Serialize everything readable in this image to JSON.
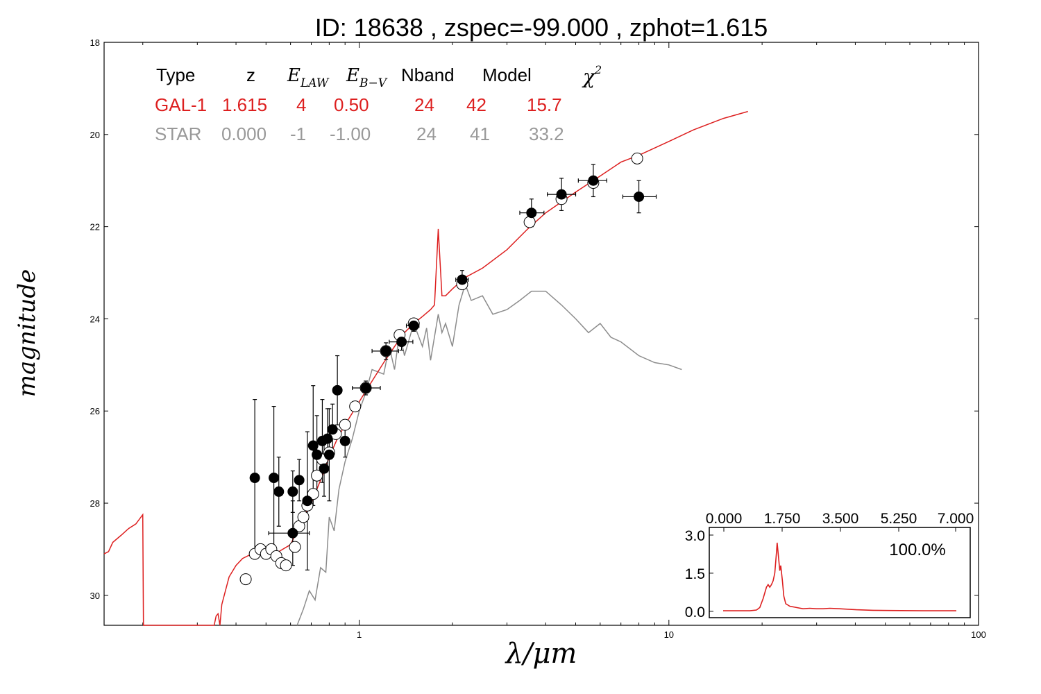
{
  "title": "ID:  18638 , zspec=-99.000 , zphot=1.615",
  "xlabel": "λ/μm",
  "ylabel": "magnitude",
  "colors": {
    "galaxy": "#dd1f1f",
    "star": "#8c8c8c",
    "axis": "#000000"
  },
  "legend": {
    "header": {
      "type": "Type",
      "z": "z",
      "elaw": "E",
      "elaw_sub": "LAW",
      "ebv": "E",
      "ebv_sub": "B−V",
      "nband": "Nband",
      "model": "Model",
      "chi2": "χ",
      "chi2_sup": "2"
    },
    "rows": [
      {
        "type": "GAL-1",
        "z": "1.615",
        "elaw": "4",
        "ebv": "0.50",
        "nband": "24",
        "model": "42",
        "chi2": "15.7",
        "color": "#dd1f1f"
      },
      {
        "type": "STAR",
        "z": "0.000",
        "elaw": "-1",
        "ebv": "-1.00",
        "nband": "24",
        "model": "41",
        "chi2": "33.2",
        "color": "#999999"
      }
    ]
  },
  "inset": {
    "percent": "100.0%"
  },
  "chart_data": [
    {
      "type": "scatter",
      "title": "ID:  18638 , zspec=-99.000 , zphot=1.615",
      "xlabel": "λ/μm",
      "ylabel": "magnitude",
      "xscale": "log",
      "xlim": [
        0.15,
        100
      ],
      "ylim": [
        30.65,
        18
      ],
      "y_inverted": true,
      "xticks": [
        1,
        10,
        100
      ],
      "xtick_labels": [
        "1",
        "10",
        "100"
      ],
      "yticks": [
        18,
        20,
        22,
        24,
        26,
        28,
        30
      ],
      "ytick_labels": [
        "18",
        "20",
        "22",
        "24",
        "26",
        "28",
        "30"
      ],
      "series": [
        {
          "name": "GAL-1",
          "kind": "line",
          "color": "#dd1f1f",
          "points": [
            [
              0.15,
              29.1
            ],
            [
              0.155,
              29.05
            ],
            [
              0.16,
              28.85
            ],
            [
              0.17,
              28.7
            ],
            [
              0.18,
              28.55
            ],
            [
              0.19,
              28.45
            ],
            [
              0.2,
              28.25
            ],
            [
              0.201,
              30.65
            ],
            [
              0.34,
              30.65
            ],
            [
              0.345,
              30.45
            ],
            [
              0.35,
              30.4
            ],
            [
              0.355,
              30.65
            ],
            [
              0.36,
              30.2
            ],
            [
              0.38,
              29.6
            ],
            [
              0.4,
              29.35
            ],
            [
              0.42,
              29.2
            ],
            [
              0.45,
              29.1
            ],
            [
              0.5,
              29.05
            ],
            [
              0.55,
              29.05
            ],
            [
              0.6,
              28.9
            ],
            [
              0.63,
              28.6
            ],
            [
              0.66,
              28.3
            ],
            [
              0.7,
              28.0
            ],
            [
              0.75,
              27.5
            ],
            [
              0.8,
              27.0
            ],
            [
              0.85,
              26.6
            ],
            [
              0.9,
              26.3
            ],
            [
              1.0,
              25.8
            ],
            [
              1.1,
              25.35
            ],
            [
              1.2,
              24.95
            ],
            [
              1.3,
              24.6
            ],
            [
              1.4,
              24.3
            ],
            [
              1.5,
              24.1
            ],
            [
              1.6,
              23.95
            ],
            [
              1.7,
              23.8
            ],
            [
              1.75,
              23.7
            ],
            [
              1.8,
              22.05
            ],
            [
              1.85,
              23.5
            ],
            [
              1.9,
              23.5
            ],
            [
              2.0,
              23.35
            ],
            [
              2.2,
              23.1
            ],
            [
              2.5,
              22.9
            ],
            [
              3.0,
              22.5
            ],
            [
              3.5,
              22.05
            ],
            [
              4.0,
              21.7
            ],
            [
              5.0,
              21.25
            ],
            [
              6.0,
              20.9
            ],
            [
              7.0,
              20.6
            ],
            [
              8.0,
              20.45
            ],
            [
              10.0,
              20.15
            ],
            [
              12.0,
              19.9
            ],
            [
              15.0,
              19.65
            ],
            [
              18.0,
              19.5
            ]
          ]
        },
        {
          "name": "STAR",
          "kind": "line",
          "color": "#8c8c8c",
          "points": [
            [
              0.63,
              30.65
            ],
            [
              0.66,
              30.3
            ],
            [
              0.69,
              29.9
            ],
            [
              0.72,
              30.1
            ],
            [
              0.75,
              29.4
            ],
            [
              0.78,
              29.5
            ],
            [
              0.8,
              28.3
            ],
            [
              0.83,
              28.6
            ],
            [
              0.86,
              27.7
            ],
            [
              0.9,
              27.1
            ],
            [
              0.95,
              26.6
            ],
            [
              1.0,
              26.0
            ],
            [
              1.05,
              25.6
            ],
            [
              1.1,
              25.1
            ],
            [
              1.2,
              25.2
            ],
            [
              1.25,
              24.6
            ],
            [
              1.3,
              25.1
            ],
            [
              1.35,
              24.3
            ],
            [
              1.4,
              24.8
            ],
            [
              1.5,
              24.1
            ],
            [
              1.6,
              24.6
            ],
            [
              1.65,
              24.2
            ],
            [
              1.7,
              24.9
            ],
            [
              1.8,
              23.9
            ],
            [
              1.85,
              24.3
            ],
            [
              1.9,
              24.1
            ],
            [
              2.0,
              24.6
            ],
            [
              2.1,
              23.7
            ],
            [
              2.2,
              23.25
            ],
            [
              2.3,
              23.6
            ],
            [
              2.5,
              23.5
            ],
            [
              2.7,
              23.9
            ],
            [
              3.0,
              23.8
            ],
            [
              3.3,
              23.6
            ],
            [
              3.6,
              23.4
            ],
            [
              4.0,
              23.4
            ],
            [
              4.5,
              23.7
            ],
            [
              5.0,
              24.0
            ],
            [
              5.5,
              24.3
            ],
            [
              6.0,
              24.1
            ],
            [
              6.5,
              24.4
            ],
            [
              7.0,
              24.5
            ],
            [
              8.0,
              24.8
            ],
            [
              9.0,
              24.95
            ],
            [
              10.0,
              25.0
            ],
            [
              11.0,
              25.1
            ]
          ]
        },
        {
          "name": "model-photometry",
          "kind": "open-circles",
          "points": [
            [
              0.43,
              29.65
            ],
            [
              0.46,
              29.1
            ],
            [
              0.48,
              29.0
            ],
            [
              0.5,
              29.1
            ],
            [
              0.52,
              29.0
            ],
            [
              0.54,
              29.15
            ],
            [
              0.56,
              29.3
            ],
            [
              0.58,
              29.35
            ],
            [
              0.62,
              28.95
            ],
            [
              0.64,
              28.5
            ],
            [
              0.66,
              28.3
            ],
            [
              0.68,
              28.05
            ],
            [
              0.71,
              27.8
            ],
            [
              0.73,
              27.4
            ],
            [
              0.76,
              27.05
            ],
            [
              0.8,
              26.9
            ],
            [
              0.84,
              26.5
            ],
            [
              0.9,
              26.3
            ],
            [
              0.97,
              25.9
            ],
            [
              1.05,
              25.5
            ],
            [
              1.22,
              24.7
            ],
            [
              1.35,
              24.35
            ],
            [
              1.5,
              24.1
            ],
            [
              2.15,
              23.25
            ],
            [
              3.55,
              21.9
            ],
            [
              4.5,
              21.4
            ],
            [
              5.7,
              21.05
            ],
            [
              7.9,
              20.52
            ]
          ]
        },
        {
          "name": "observed-photometry",
          "kind": "filled-circles",
          "points": [
            [
              0.46,
              27.45
            ],
            [
              0.53,
              27.45
            ],
            [
              0.55,
              27.75
            ],
            [
              0.61,
              27.75
            ],
            [
              0.64,
              27.5
            ],
            [
              0.61,
              28.65
            ],
            [
              0.68,
              27.95
            ],
            [
              0.71,
              26.75
            ],
            [
              0.73,
              26.95
            ],
            [
              0.76,
              26.65
            ],
            [
              0.77,
              27.25
            ],
            [
              0.79,
              26.6
            ],
            [
              0.8,
              26.95
            ],
            [
              0.82,
              26.4
            ],
            [
              0.85,
              25.55
            ],
            [
              0.9,
              26.65
            ],
            [
              1.05,
              25.5
            ],
            [
              1.22,
              24.7
            ],
            [
              1.37,
              24.5
            ],
            [
              1.5,
              24.15
            ],
            [
              2.15,
              23.15
            ],
            [
              3.6,
              21.7
            ],
            [
              4.5,
              21.3
            ],
            [
              5.7,
              21.0
            ],
            [
              8.0,
              21.35
            ]
          ],
          "yerr": [
            1.7,
            1.55,
            0.75,
            0.45,
            0.45,
            0.7,
            1.5,
            1.3,
            0.85,
            0.9,
            0.6,
            0.65,
            1.0,
            0.55,
            0.75,
            0.35,
            0.15,
            0.18,
            0.18,
            0.12,
            0.2,
            0.3,
            0.35,
            0.35,
            0.35
          ],
          "xerr_lo": [
            0.01,
            0.01,
            0.01,
            0.01,
            0.01,
            0.1,
            0.01,
            0.01,
            0.01,
            0.01,
            0.01,
            0.01,
            0.01,
            0.01,
            0.01,
            0.02,
            0.1,
            0.12,
            0.12,
            0.08,
            0.1,
            0.3,
            0.45,
            0.6,
            0.9
          ],
          "xerr_hi": [
            0.01,
            0.01,
            0.01,
            0.01,
            0.01,
            0.08,
            0.01,
            0.01,
            0.01,
            0.01,
            0.01,
            0.01,
            0.01,
            0.01,
            0.01,
            0.02,
            0.12,
            0.12,
            0.12,
            0.06,
            0.1,
            0.35,
            0.5,
            0.6,
            1.1
          ]
        }
      ]
    },
    {
      "type": "line",
      "name": "redshift-pdf-inset",
      "xlim": [
        0,
        7
      ],
      "ylim": [
        -0.25,
        3.3
      ],
      "xticks": [
        0,
        1.75,
        3.5,
        5.25,
        7
      ],
      "xtick_labels": [
        "0.000",
        "1.750",
        "3.500",
        "5.250",
        "7.000"
      ],
      "yticks": [
        0,
        1.5,
        3.0
      ],
      "ytick_labels": [
        "0.0",
        "1.5",
        "3.0"
      ],
      "annotation": "100.0%",
      "color": "#dd1f1f",
      "points": [
        [
          0.0,
          0.02
        ],
        [
          0.8,
          0.02
        ],
        [
          1.0,
          0.05
        ],
        [
          1.1,
          0.15
        ],
        [
          1.2,
          0.5
        ],
        [
          1.3,
          0.95
        ],
        [
          1.35,
          1.05
        ],
        [
          1.4,
          0.95
        ],
        [
          1.45,
          1.05
        ],
        [
          1.5,
          1.2
        ],
        [
          1.55,
          1.5
        ],
        [
          1.6,
          2.3
        ],
        [
          1.62,
          2.7
        ],
        [
          1.65,
          2.3
        ],
        [
          1.7,
          1.6
        ],
        [
          1.73,
          1.8
        ],
        [
          1.78,
          1.2
        ],
        [
          1.82,
          0.6
        ],
        [
          1.88,
          0.3
        ],
        [
          2.0,
          0.2
        ],
        [
          2.2,
          0.15
        ],
        [
          2.4,
          0.1
        ],
        [
          2.6,
          0.12
        ],
        [
          2.8,
          0.1
        ],
        [
          3.0,
          0.1
        ],
        [
          3.2,
          0.12
        ],
        [
          3.5,
          0.1
        ],
        [
          4.0,
          0.06
        ],
        [
          4.5,
          0.04
        ],
        [
          5.0,
          0.03
        ],
        [
          6.0,
          0.02
        ],
        [
          7.0,
          0.02
        ]
      ]
    }
  ]
}
